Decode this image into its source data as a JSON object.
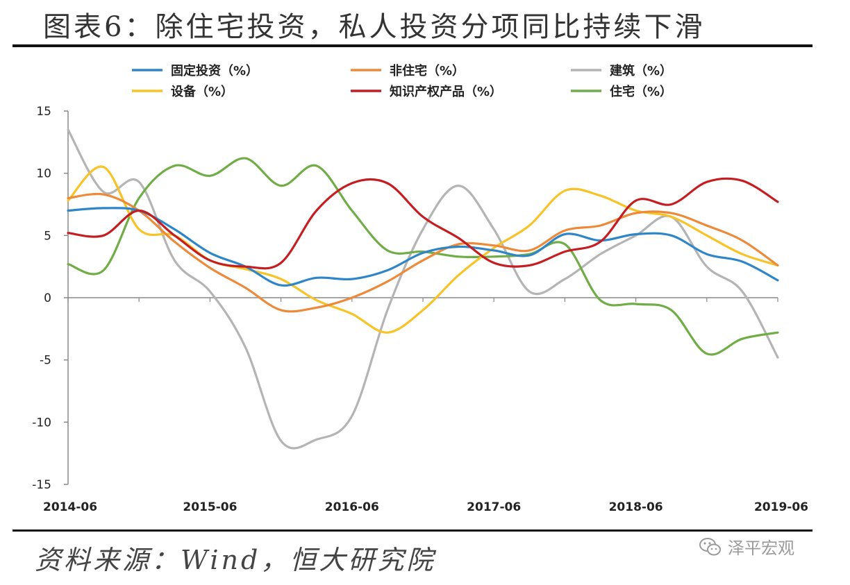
{
  "title": "图表6：除住宅投资，私人投资分项同比持续下滑",
  "source": "资料来源：Wind，恒大研究院",
  "watermark": {
    "icon": "wechat-icon",
    "text": "泽平宏观"
  },
  "chart_data": {
    "type": "line",
    "ylim": [
      -15,
      15
    ],
    "yticks": [
      -15,
      -10,
      -5,
      0,
      5,
      10,
      15
    ],
    "xlim": [
      "2014-06",
      "2019-06"
    ],
    "xticks": [
      "2014-06",
      "2015-06",
      "2016-06",
      "2017-06",
      "2018-06",
      "2019-06"
    ],
    "legend_position": "top",
    "grid": false,
    "x": [
      "2014-06",
      "2014-09",
      "2014-12",
      "2015-03",
      "2015-06",
      "2015-09",
      "2015-12",
      "2016-03",
      "2016-06",
      "2016-09",
      "2016-12",
      "2017-03",
      "2017-06",
      "2017-09",
      "2017-12",
      "2018-03",
      "2018-06",
      "2018-09",
      "2018-12",
      "2019-03",
      "2019-06"
    ],
    "series": [
      {
        "name": "固定投资（%）",
        "color": "#2e86c8",
        "values": [
          7.0,
          7.2,
          7.0,
          5.5,
          3.6,
          2.5,
          1.0,
          1.6,
          1.5,
          2.2,
          3.6,
          4.1,
          3.8,
          3.4,
          5.1,
          4.6,
          5.1,
          5.0,
          3.5,
          2.9,
          1.4
        ]
      },
      {
        "name": "非住宅（%）",
        "color": "#ed8a3a",
        "values": [
          8.0,
          8.3,
          7.0,
          4.5,
          2.4,
          0.8,
          -1.0,
          -0.8,
          0.0,
          1.3,
          3.0,
          4.3,
          4.2,
          3.8,
          5.4,
          5.8,
          6.8,
          6.8,
          5.8,
          4.6,
          2.6
        ]
      },
      {
        "name": "建筑（%）",
        "color": "#b4b4b4",
        "values": [
          13.5,
          8.5,
          9.3,
          3.0,
          0.5,
          -4.0,
          -11.5,
          -11.4,
          -9.5,
          -1.0,
          5.5,
          9.0,
          5.5,
          0.5,
          1.5,
          3.5,
          5.0,
          6.5,
          2.5,
          0.5,
          -4.8
        ]
      },
      {
        "name": "设备（%）",
        "color": "#f7c326",
        "values": [
          7.8,
          10.5,
          5.5,
          5.0,
          3.0,
          2.3,
          1.5,
          -0.2,
          -1.3,
          -2.8,
          -1.0,
          1.8,
          4.0,
          5.8,
          8.6,
          8.2,
          7.0,
          6.5,
          5.0,
          3.5,
          2.6
        ]
      },
      {
        "name": "知识产权产品（%）",
        "color": "#c41e22",
        "values": [
          5.2,
          5.0,
          7.0,
          5.0,
          3.0,
          2.5,
          2.8,
          7.0,
          9.2,
          9.2,
          6.5,
          4.8,
          2.8,
          2.6,
          3.7,
          4.5,
          7.8,
          7.5,
          9.3,
          9.4,
          7.7
        ]
      },
      {
        "name": "住宅（%）",
        "color": "#70ad47",
        "values": [
          2.7,
          2.2,
          8.0,
          10.6,
          9.8,
          11.2,
          9.0,
          10.6,
          7.0,
          3.8,
          3.7,
          3.3,
          3.3,
          3.5,
          4.3,
          -0.2,
          -0.5,
          -1.0,
          -4.5,
          -3.3,
          -2.8
        ]
      }
    ]
  }
}
